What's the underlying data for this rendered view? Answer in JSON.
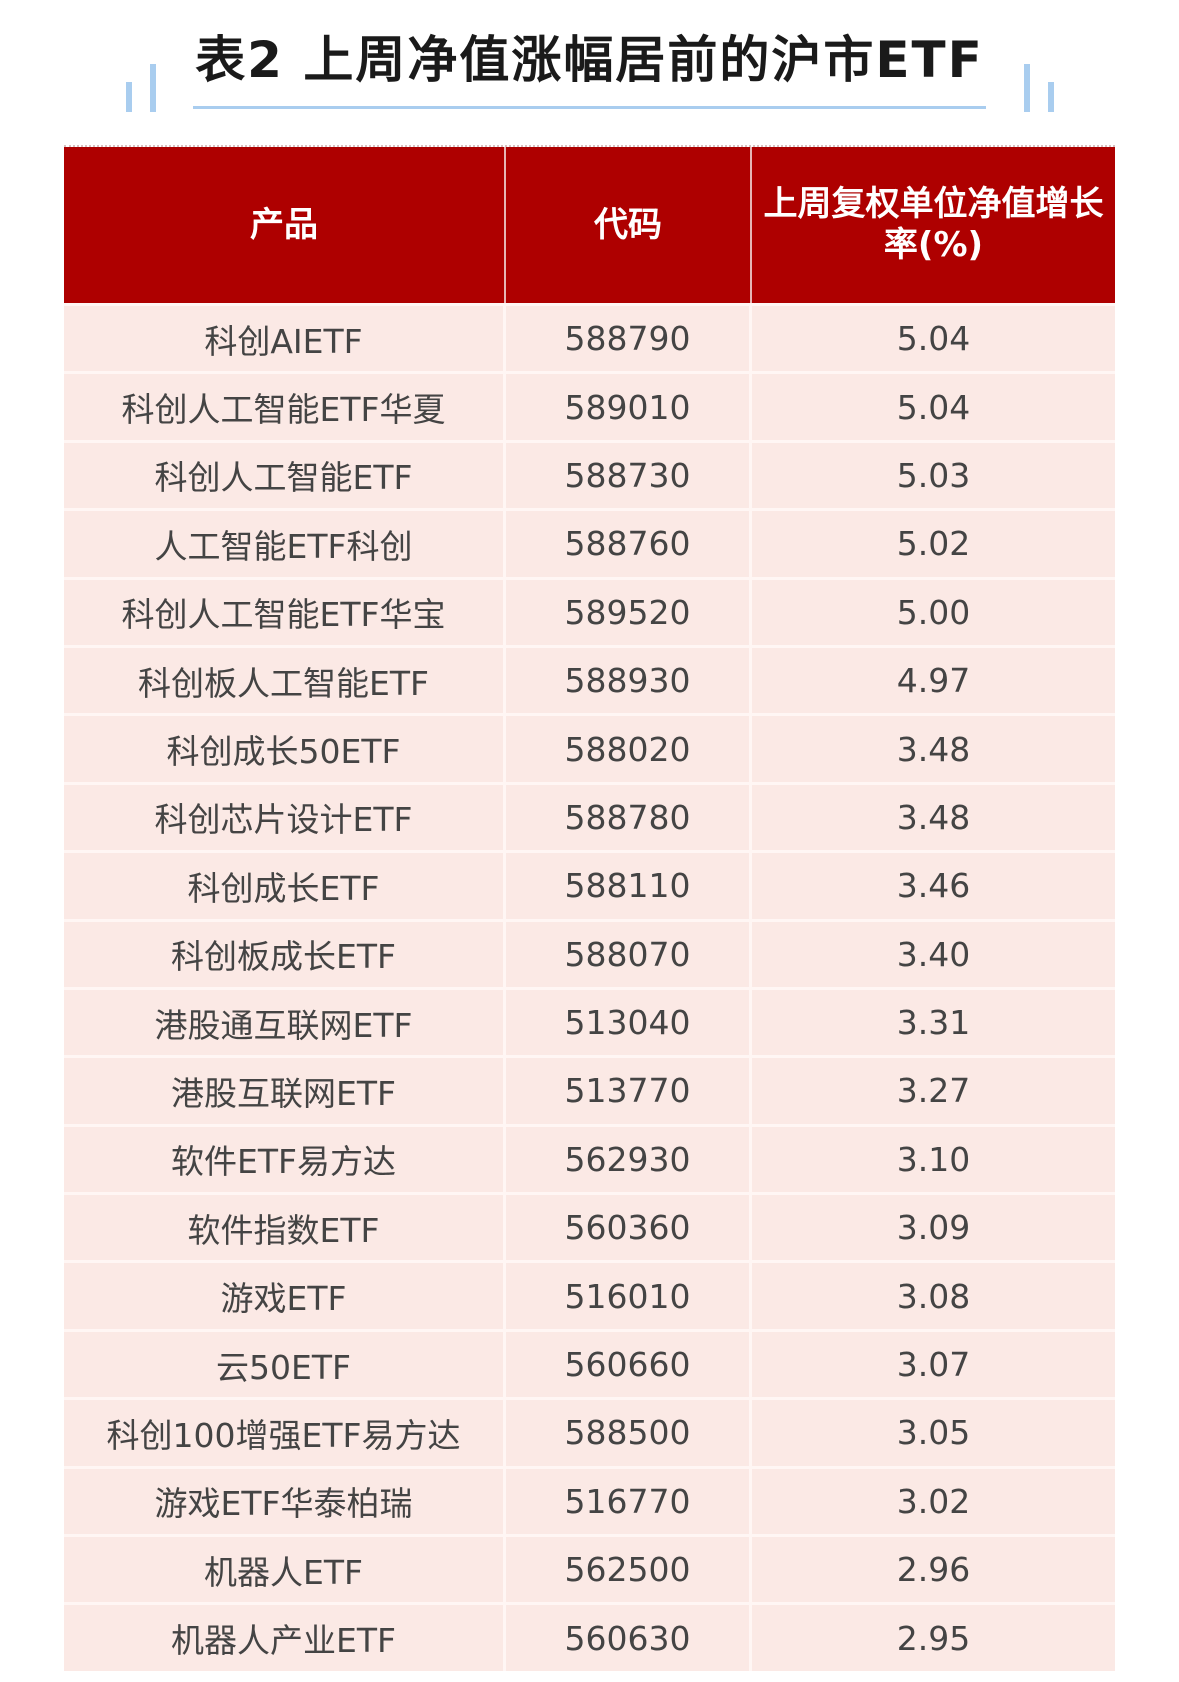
{
  "title": "表2 上周净值涨幅居前的沪市ETF",
  "colors": {
    "header_bg": "#ae0000",
    "row_bg": "#fbe9e5",
    "accent_line": "#a9cdef"
  },
  "table": {
    "headers": [
      "产品",
      "代码",
      "上周复权单位净值增长率(%)"
    ],
    "rows": [
      [
        "科创AIETF",
        "588790",
        "5.04"
      ],
      [
        "科创人工智能ETF华夏",
        "589010",
        "5.04"
      ],
      [
        "科创人工智能ETF",
        "588730",
        "5.03"
      ],
      [
        "人工智能ETF科创",
        "588760",
        "5.02"
      ],
      [
        "科创人工智能ETF华宝",
        "589520",
        "5.00"
      ],
      [
        "科创板人工智能ETF",
        "588930",
        "4.97"
      ],
      [
        "科创成长50ETF",
        "588020",
        "3.48"
      ],
      [
        "科创芯片设计ETF",
        "588780",
        "3.48"
      ],
      [
        "科创成长ETF",
        "588110",
        "3.46"
      ],
      [
        "科创板成长ETF",
        "588070",
        "3.40"
      ],
      [
        "港股通互联网ETF",
        "513040",
        "3.31"
      ],
      [
        "港股互联网ETF",
        "513770",
        "3.27"
      ],
      [
        "软件ETF易方达",
        "562930",
        "3.10"
      ],
      [
        "软件指数ETF",
        "560360",
        "3.09"
      ],
      [
        "游戏ETF",
        "516010",
        "3.08"
      ],
      [
        "云50ETF",
        "560660",
        "3.07"
      ],
      [
        "科创100增强ETF易方达",
        "588500",
        "3.05"
      ],
      [
        "游戏ETF华泰柏瑞",
        "516770",
        "3.02"
      ],
      [
        "机器人ETF",
        "562500",
        "2.96"
      ],
      [
        "机器人产业ETF",
        "560630",
        "2.95"
      ]
    ]
  }
}
